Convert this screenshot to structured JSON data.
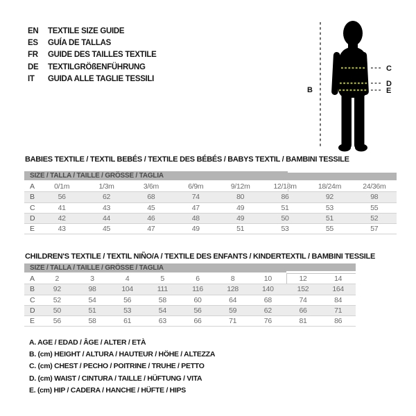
{
  "title_block": {
    "languages": [
      {
        "code": "EN",
        "label": "TEXTILE SIZE GUIDE"
      },
      {
        "code": "ES",
        "label": "GUÍA DE TALLAS"
      },
      {
        "code": "FR",
        "label": "GUIDE DES TAILLES TEXTILE"
      },
      {
        "code": "DE",
        "label": "TEXTILGRÖßENFÜHRUNG"
      },
      {
        "code": "IT",
        "label": "GUIDA ALLE TAGLIE TESSILI"
      }
    ]
  },
  "figure": {
    "height_label": "B",
    "chest_label": "C",
    "waist_label": "D",
    "hip_label": "E",
    "colors": {
      "silhouette": "#000000",
      "measure_dash": "#4a4a4a",
      "band_dash": "#a9b41c"
    }
  },
  "babies_table": {
    "title": "BABIES TEXTILE / TEXTIL BEBÉS / TEXTILE DES BÉBÉS / BABYS TEXTIL / BAMBINI TESSILE",
    "size_header": "SIZE / TALLA / TAILLE / GRÖSSE / TAGLIA",
    "rows": [
      {
        "label": "A",
        "values": [
          "0/1m",
          "1/3m",
          "3/6m",
          "6/9m",
          "9/12m",
          "12/18m",
          "18/24m",
          "24/36m"
        ]
      },
      {
        "label": "B",
        "values": [
          "56",
          "62",
          "68",
          "74",
          "80",
          "86",
          "92",
          "98"
        ]
      },
      {
        "label": "C",
        "values": [
          "41",
          "43",
          "45",
          "47",
          "49",
          "51",
          "53",
          "55"
        ]
      },
      {
        "label": "D",
        "values": [
          "42",
          "44",
          "46",
          "48",
          "49",
          "50",
          "51",
          "52"
        ]
      },
      {
        "label": "E",
        "values": [
          "43",
          "45",
          "47",
          "49",
          "51",
          "53",
          "55",
          "57"
        ]
      }
    ]
  },
  "children_table": {
    "title": "CHILDREN'S TEXTILE / TEXTIL NIÑO/A / TEXTILE DES ENFANTS / KINDERTEXTIL / BAMBINI TESSILE",
    "size_header": "SIZE / TALLA / TAILLE / GRÖSSE / TAGLIA",
    "rows": [
      {
        "label": "A",
        "values": [
          "2",
          "3",
          "4",
          "5",
          "6",
          "8",
          "10",
          "12",
          "14"
        ]
      },
      {
        "label": "B",
        "values": [
          "92",
          "98",
          "104",
          "111",
          "116",
          "128",
          "140",
          "152",
          "164"
        ]
      },
      {
        "label": "C",
        "values": [
          "52",
          "54",
          "56",
          "58",
          "60",
          "64",
          "68",
          "74",
          "84"
        ]
      },
      {
        "label": "D",
        "values": [
          "50",
          "51",
          "53",
          "54",
          "56",
          "59",
          "62",
          "66",
          "71"
        ]
      },
      {
        "label": "E",
        "values": [
          "56",
          "58",
          "61",
          "63",
          "66",
          "71",
          "76",
          "81",
          "86"
        ]
      }
    ]
  },
  "legend": {
    "items": [
      "A. AGE / EDAD / ÂGE / ALTER / ETÀ",
      "B. (cm) HEIGHT / ALTURA / HAUTEUR / HÖHE / ALTEZZA",
      "C. (cm) CHEST / PECHO / POITRINE / TRUHE / PETTO",
      "D. (cm) WAIST / CINTURA / TAILLE / HÜFTUNG / VITA",
      "E. (cm) HIP / CADERA / HANCHE / HÜFTE / HIPS"
    ]
  },
  "colors": {
    "background": "#ffffff",
    "header_bar": "#b4b4b4",
    "header_bar_text": "#4a4a4a",
    "row_stripe": "#ececec",
    "row_line": "#d2d2d2",
    "value_text": "#6b6b6b",
    "heading_text": "#161616"
  }
}
